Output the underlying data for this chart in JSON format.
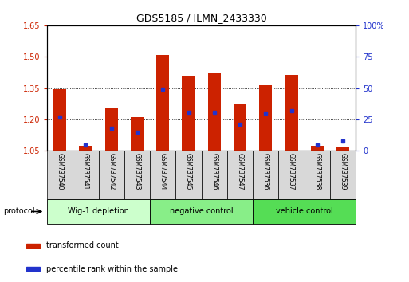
{
  "title": "GDS5185 / ILMN_2433330",
  "samples": [
    "GSM737540",
    "GSM737541",
    "GSM737542",
    "GSM737543",
    "GSM737544",
    "GSM737545",
    "GSM737546",
    "GSM737547",
    "GSM737536",
    "GSM737537",
    "GSM737538",
    "GSM737539"
  ],
  "transformed_count": [
    1.345,
    1.075,
    1.255,
    1.21,
    1.51,
    1.405,
    1.42,
    1.275,
    1.365,
    1.415,
    1.075,
    1.07
  ],
  "percentile_rank": [
    27,
    5,
    18,
    15,
    49,
    31,
    31,
    21,
    30,
    32,
    5,
    8
  ],
  "base_value": 1.05,
  "ylim_left": [
    1.05,
    1.65
  ],
  "ylim_right": [
    0,
    100
  ],
  "yticks_left": [
    1.05,
    1.2,
    1.35,
    1.5,
    1.65
  ],
  "yticks_right": [
    0,
    25,
    50,
    75,
    100
  ],
  "bar_color": "#cc2200",
  "dot_color": "#2233cc",
  "plot_bg": "#ffffff",
  "left_tick_color": "#cc2200",
  "right_tick_color": "#2233cc",
  "group_defs": [
    {
      "label": "Wig-1 depletion",
      "start": 0,
      "end": 3,
      "color": "#ccffcc"
    },
    {
      "label": "negative control",
      "start": 4,
      "end": 7,
      "color": "#88ee88"
    },
    {
      "label": "vehicle control",
      "start": 8,
      "end": 11,
      "color": "#55dd55"
    }
  ],
  "legend_items": [
    {
      "label": "transformed count",
      "color": "#cc2200"
    },
    {
      "label": "percentile rank within the sample",
      "color": "#2233cc"
    }
  ],
  "protocol_label": "protocol"
}
